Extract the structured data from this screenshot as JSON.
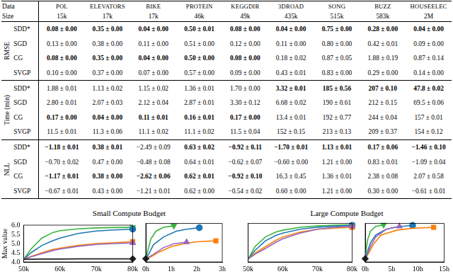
{
  "table": {
    "header": {
      "row_labels": [
        "Data",
        "Size"
      ],
      "columns": [
        {
          "name": "POL",
          "size": "15k"
        },
        {
          "name": "ELEVATORS",
          "size": "17k"
        },
        {
          "name": "BIKE",
          "size": "17k"
        },
        {
          "name": "PROTEIN",
          "size": "46k"
        },
        {
          "name": "KEGGDIR",
          "size": "49k"
        },
        {
          "name": "3DROAD",
          "size": "435k"
        },
        {
          "name": "SONG",
          "size": "515k"
        },
        {
          "name": "BUZZ",
          "size": "583k"
        },
        {
          "name": "HOUSEELEC",
          "size": "2M"
        }
      ]
    },
    "sections": [
      {
        "label": "RMSE",
        "rows": [
          {
            "method": "SDD*",
            "cells": [
              "0.08 ± 0.00",
              "0.35 ± 0.00",
              "0.04 ± 0.00",
              "0.50 ± 0.01",
              "0.08 ± 0.00",
              "0.04 ± 0.00",
              "0.75 ± 0.00",
              "0.28 ± 0.00",
              "0.04 ± 0.00"
            ],
            "bold": [
              true,
              true,
              true,
              true,
              true,
              true,
              true,
              true,
              true
            ]
          },
          {
            "method": "SGD",
            "cells": [
              "0.13 ± 0.00",
              "0.38 ± 0.00",
              "0.11 ± 0.00",
              "0.51 ± 0.00",
              "0.12 ± 0.00",
              "0.11 ± 0.00",
              "0.80 ± 0.00",
              "0.42 ± 0.01",
              "0.09 ± 0.00"
            ],
            "bold": [
              false,
              false,
              false,
              false,
              false,
              false,
              false,
              false,
              false
            ]
          },
          {
            "method": "CG",
            "cells": [
              "0.08 ± 0.00",
              "0.35 ± 0.00",
              "0.04 ± 0.00",
              "0.50 ± 0.00",
              "0.08 ± 0.00",
              "0.18 ± 0.02",
              "0.87 ± 0.05",
              "1.88 ± 0.19",
              "0.87 ± 0.14"
            ],
            "bold": [
              true,
              true,
              true,
              true,
              true,
              false,
              false,
              false,
              false
            ]
          },
          {
            "method": "SVGP",
            "cells": [
              "0.10 ± 0.00",
              "0.37 ± 0.00",
              "0.07 ± 0.00",
              "0.57 ± 0.00",
              "0.09 ± 0.00",
              "0.43 ± 0.01",
              "0.83 ± 0.00",
              "0.29 ± 0.00",
              "0.14 ± 0.00"
            ],
            "bold": [
              false,
              false,
              false,
              false,
              false,
              false,
              false,
              false,
              false
            ]
          }
        ]
      },
      {
        "label": "Time (min)",
        "rows": [
          {
            "method": "SDD*",
            "cells": [
              "1.88 ± 0.01",
              "1.13 ± 0.02",
              "1.15 ± 0.02",
              "1.36 ± 0.01",
              "1.70 ± 0.00",
              "3.32 ± 0.01",
              "185 ± 0.56",
              "207 ± 0.10",
              "47.8 ± 0.02"
            ],
            "bold": [
              false,
              false,
              false,
              false,
              false,
              true,
              true,
              true,
              true
            ]
          },
          {
            "method": "SGD",
            "cells": [
              "2.80 ± 0.01",
              "2.07 ± 0.03",
              "2.12 ± 0.04",
              "2.87 ± 0.01",
              "3.30 ± 0.12",
              "6.68 ± 0.02",
              "190 ± 0.61",
              "212 ± 0.15",
              "69.5 ± 0.06"
            ],
            "bold": [
              false,
              false,
              false,
              false,
              false,
              false,
              false,
              false,
              false
            ]
          },
          {
            "method": "CG",
            "cells": [
              "0.17 ± 0.00",
              "0.04 ± 0.00",
              "0.11 ± 0.01",
              "0.16 ± 0.01",
              "0.17 ± 0.00",
              "13.4 ± 0.01",
              "192 ± 0.77",
              "244 ± 0.04",
              "157 ± 0.01"
            ],
            "bold": [
              true,
              true,
              true,
              true,
              true,
              false,
              false,
              false,
              false
            ]
          },
          {
            "method": "SVGP",
            "cells": [
              "11.5 ± 0.01",
              "11.3 ± 0.06",
              "11.1 ± 0.02",
              "11.1 ± 0.02",
              "11.5 ± 0.04",
              "152 ± 0.15",
              "213 ± 0.13",
              "209 ± 0.37",
              "154 ± 0.12"
            ],
            "bold": [
              false,
              false,
              false,
              false,
              false,
              false,
              false,
              false,
              false
            ]
          }
        ]
      },
      {
        "label": "NLL",
        "rows": [
          {
            "method": "SDD*",
            "cells": [
              "−1.18 ± 0.01",
              "0.38 ± 0.01",
              "−2.49 ± 0.09",
              "0.63 ± 0.02",
              "−0.92 ± 0.11",
              "−1.70 ± 0.01",
              "1.13 ± 0.01",
              "0.17 ± 0.06",
              "−1.46 ± 0.10"
            ],
            "bold": [
              true,
              true,
              false,
              true,
              true,
              true,
              true,
              true,
              true
            ]
          },
          {
            "method": "SGD",
            "cells": [
              "−0.70 ± 0.02",
              "0.47 ± 0.00",
              "−0.48 ± 0.08",
              "0.64 ± 0.01",
              "−0.62 ± 0.07",
              "−0.60 ± 0.00",
              "1.21 ± 0.00",
              "0.83 ± 0.01",
              "−1.09 ± 0.04"
            ],
            "bold": [
              false,
              false,
              false,
              false,
              false,
              false,
              false,
              false,
              false
            ]
          },
          {
            "method": "CG",
            "cells": [
              "−1.17 ± 0.01",
              "0.38 ± 0.00",
              "−2.62 ± 0.06",
              "0.62 ± 0.01",
              "−0.92 ± 0.10",
              "16.3 ± 0.45",
              "1.36 ± 0.01",
              "2.38 ± 0.08",
              "2.07 ± 0.58"
            ],
            "bold": [
              true,
              true,
              true,
              true,
              true,
              false,
              false,
              false,
              false
            ]
          },
          {
            "method": "SVGP",
            "cells": [
              "−0.67 ± 0.01",
              "0.43 ± 0.00",
              "−1.21 ± 0.01",
              "0.62 ± 0.00",
              "−0.54 ± 0.02",
              "0.60 ± 0.00",
              "1.21 ± 0.00",
              "0.30 ± 0.00",
              "−0.61 ± 0.01"
            ],
            "bold": [
              false,
              false,
              false,
              false,
              false,
              false,
              false,
              false,
              false
            ]
          }
        ]
      }
    ]
  },
  "group_titles": [
    "Small Compute Budget",
    "Large Compute Budget"
  ],
  "chart_data": [
    {
      "type": "line",
      "grid": false,
      "y_label": "Max value",
      "xlim": [
        50000,
        80000
      ],
      "xticks": [
        {
          "value": 50000,
          "label": "50k"
        },
        {
          "value": 60000,
          "label": "60k"
        },
        {
          "value": 70000,
          "label": "70k"
        },
        {
          "value": 80000,
          "label": "80k"
        }
      ],
      "ylim": [
        4,
        6
      ],
      "yticks": [
        {
          "value": 4,
          "label": "4.0"
        },
        {
          "value": 4.5,
          "label": "4.5"
        },
        {
          "value": 5,
          "label": "5.0"
        },
        {
          "value": 5.5,
          "label": "5.5"
        },
        {
          "value": 6,
          "label": "6.0"
        }
      ],
      "series": [
        {
          "color": "#222222",
          "marker": "diamond",
          "x": [
            50000,
            52000,
            55000,
            58000,
            60000,
            65000,
            70000,
            75000,
            80000
          ],
          "values": [
            4.15,
            4.15,
            4.16,
            4.16,
            4.16,
            4.17,
            4.17,
            4.17,
            4.17
          ]
        },
        {
          "color": "#9467bd",
          "marker": "triangle",
          "x": [
            50000,
            52000,
            55000,
            58000,
            60000,
            65000,
            70000,
            75000,
            80000
          ],
          "values": [
            4.15,
            4.28,
            4.45,
            4.62,
            4.7,
            4.85,
            4.95,
            5.0,
            5.03
          ]
        },
        {
          "color": "#ff7f0e",
          "marker": "square",
          "x": [
            50000,
            52000,
            55000,
            58000,
            60000,
            65000,
            70000,
            75000,
            80000
          ],
          "values": [
            4.15,
            4.3,
            4.5,
            4.68,
            4.75,
            4.9,
            5.0,
            5.05,
            5.1
          ]
        },
        {
          "color": "#1f77b4",
          "marker": "circle",
          "x": [
            50000,
            52000,
            55000,
            58000,
            60000,
            65000,
            70000,
            75000,
            80000
          ],
          "values": [
            4.15,
            4.5,
            4.9,
            5.15,
            5.3,
            5.55,
            5.68,
            5.74,
            5.78
          ]
        },
        {
          "color": "#38b43c",
          "marker": "triangle_down",
          "x": [
            50000,
            52000,
            55000,
            58000,
            60000,
            65000,
            70000,
            75000,
            80000
          ],
          "values": [
            4.15,
            4.7,
            5.3,
            5.6,
            5.7,
            5.8,
            5.85,
            5.87,
            5.88
          ]
        }
      ]
    },
    {
      "type": "line",
      "grid": false,
      "tick_labels": "x",
      "xlim": [
        0,
        3
      ],
      "xticks": [
        {
          "value": 0,
          "label": "0h"
        },
        {
          "value": 1,
          "label": "1h"
        },
        {
          "value": 2,
          "label": "2h"
        },
        {
          "value": 3,
          "label": "3h"
        }
      ],
      "ylim": [
        4,
        6
      ],
      "yticks": [
        4,
        4.5,
        5,
        5.5,
        6
      ],
      "series": [
        {
          "color": "#222222",
          "marker": "diamond",
          "x": [
            0
          ],
          "values": [
            4.17
          ]
        },
        {
          "color": "#9467bd",
          "marker": "triangle",
          "x": [
            0,
            0.15,
            0.3,
            0.7,
            1.1,
            1.6
          ],
          "values": [
            4.15,
            4.28,
            4.4,
            4.75,
            4.95,
            5.03
          ]
        },
        {
          "color": "#ff7f0e",
          "marker": "square",
          "x": [
            0,
            0.25,
            0.5,
            1,
            1.5,
            2,
            2.75
          ],
          "values": [
            4.15,
            4.3,
            4.5,
            4.8,
            4.95,
            5.05,
            5.1
          ]
        },
        {
          "color": "#1f77b4",
          "marker": "circle",
          "x": [
            0,
            0.15,
            0.3,
            0.7,
            1.2,
            1.6,
            2.1
          ],
          "values": [
            4.15,
            4.5,
            4.9,
            5.3,
            5.6,
            5.7,
            5.78
          ]
        },
        {
          "color": "#38b43c",
          "marker": "triangle_down",
          "x": [
            0,
            0.1,
            0.2,
            0.4,
            0.7,
            1.1
          ],
          "values": [
            4.15,
            4.7,
            5.2,
            5.6,
            5.8,
            5.88
          ]
        }
      ]
    },
    {
      "type": "line",
      "grid": false,
      "tick_labels": "x",
      "xlim": [
        50000,
        80000
      ],
      "xticks": [
        {
          "value": 50000,
          "label": "50k"
        },
        {
          "value": 60000,
          "label": "60k"
        },
        {
          "value": 70000,
          "label": "70k"
        },
        {
          "value": 80000,
          "label": "80k"
        }
      ],
      "ylim": [
        4,
        6
      ],
      "yticks": [
        4,
        4.5,
        5,
        5.5,
        6
      ],
      "series": [
        {
          "color": "#9467bd",
          "marker": "triangle",
          "x": [
            50000,
            52000,
            55000,
            58000,
            60000,
            65000,
            70000,
            75000,
            80000
          ],
          "values": [
            4.15,
            4.4,
            4.7,
            5.02,
            5.2,
            5.5,
            5.7,
            5.8,
            5.85
          ]
        },
        {
          "color": "#ff7f0e",
          "marker": "square",
          "x": [
            50000,
            52000,
            55000,
            58000,
            60000,
            65000,
            70000,
            75000,
            80000
          ],
          "values": [
            4.15,
            4.45,
            4.8,
            5.12,
            5.3,
            5.55,
            5.7,
            5.76,
            5.8
          ]
        },
        {
          "color": "#1f77b4",
          "marker": "circle",
          "x": [
            50000,
            52000,
            55000,
            58000,
            60000,
            65000,
            70000,
            75000,
            80000
          ],
          "values": [
            4.15,
            4.6,
            5.1,
            5.38,
            5.5,
            5.7,
            5.8,
            5.86,
            5.9
          ]
        },
        {
          "color": "#38b43c",
          "marker": "triangle_down",
          "x": [
            50000,
            52000,
            55000,
            58000,
            60000,
            65000,
            70000,
            75000,
            80000
          ],
          "values": [
            4.15,
            4.8,
            5.3,
            5.55,
            5.65,
            5.8,
            5.87,
            5.91,
            5.93
          ]
        }
      ]
    },
    {
      "type": "line",
      "grid": false,
      "tick_labels": "x",
      "xlim": [
        0,
        15
      ],
      "xticks": [
        {
          "value": 0,
          "label": "0h"
        },
        {
          "value": 5,
          "label": "5h"
        },
        {
          "value": 10,
          "label": "10h"
        },
        {
          "value": 15,
          "label": "15h"
        }
      ],
      "ylim": [
        4,
        6
      ],
      "yticks": [
        4,
        4.5,
        5,
        5.5,
        6
      ],
      "series": [
        {
          "color": "#222222",
          "marker": "diamond",
          "x": [
            0
          ],
          "values": [
            4.17
          ]
        },
        {
          "color": "#9467bd",
          "marker": "triangle",
          "x": [
            0,
            0.5,
            1,
            2,
            4,
            6.5
          ],
          "values": [
            4.15,
            4.45,
            4.8,
            5.3,
            5.7,
            5.85
          ]
        },
        {
          "color": "#ff7f0e",
          "marker": "square",
          "x": [
            0,
            0.75,
            1.5,
            3,
            6,
            9,
            13
          ],
          "values": [
            4.15,
            4.5,
            4.9,
            5.4,
            5.65,
            5.75,
            5.8
          ]
        },
        {
          "color": "#1f77b4",
          "marker": "circle",
          "x": [
            0,
            0.5,
            1,
            2,
            4,
            6,
            9
          ],
          "values": [
            4.15,
            4.6,
            5.0,
            5.4,
            5.7,
            5.82,
            5.9
          ]
        },
        {
          "color": "#38b43c",
          "marker": "triangle_down",
          "x": [
            0,
            0.25,
            0.5,
            1,
            2,
            3.5
          ],
          "values": [
            4.15,
            4.8,
            5.2,
            5.6,
            5.85,
            5.93
          ]
        }
      ]
    }
  ]
}
